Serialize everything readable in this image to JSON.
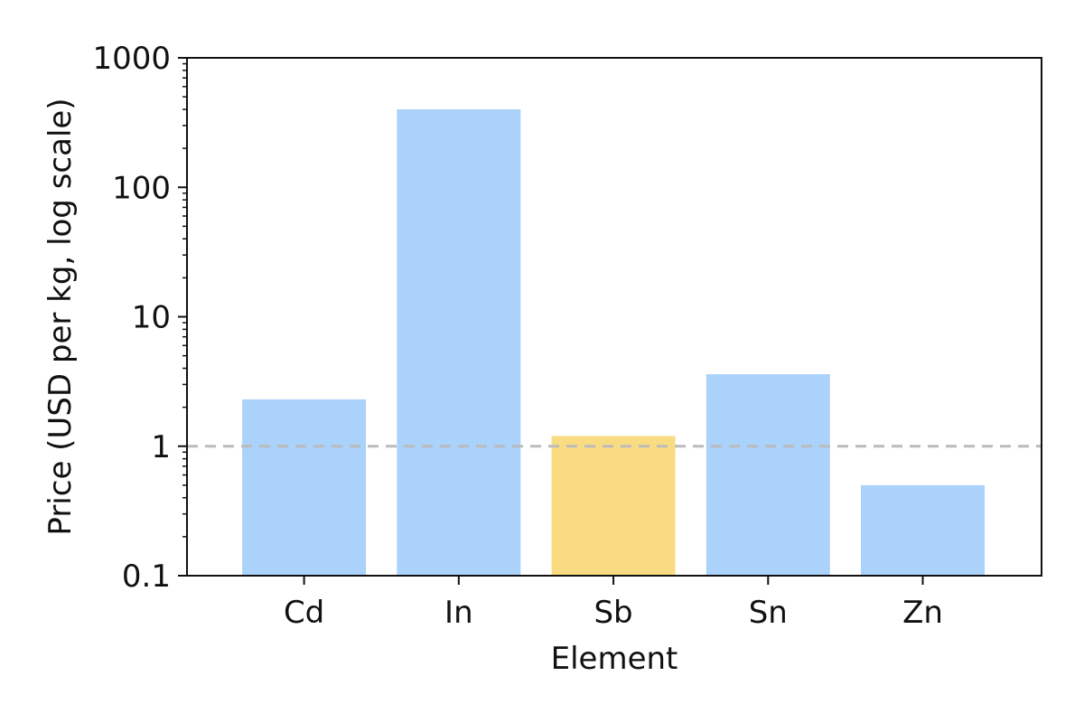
{
  "chart_data": {
    "type": "bar",
    "title": "",
    "xlabel": "Element",
    "ylabel": "Price (USD per kg, log scale)",
    "yscale": "log",
    "ylim": [
      0.1,
      1000
    ],
    "yticks": [
      0.1,
      1,
      10,
      100,
      1000
    ],
    "ytick_labels": [
      "0.1",
      "1",
      "10",
      "100",
      "1000"
    ],
    "grid": false,
    "legend": "none",
    "categories": [
      "Cd",
      "In",
      "Sb",
      "Sn",
      "Zn"
    ],
    "values": [
      2.3,
      400,
      1.2,
      3.6,
      0.5
    ],
    "colors": [
      "#aad2fb",
      "#aad2fb",
      "#f9dc81",
      "#aad2fb",
      "#aad2fb"
    ],
    "reference_line": {
      "y": 1,
      "style": "dashed",
      "color": "#bbbbbb"
    }
  }
}
